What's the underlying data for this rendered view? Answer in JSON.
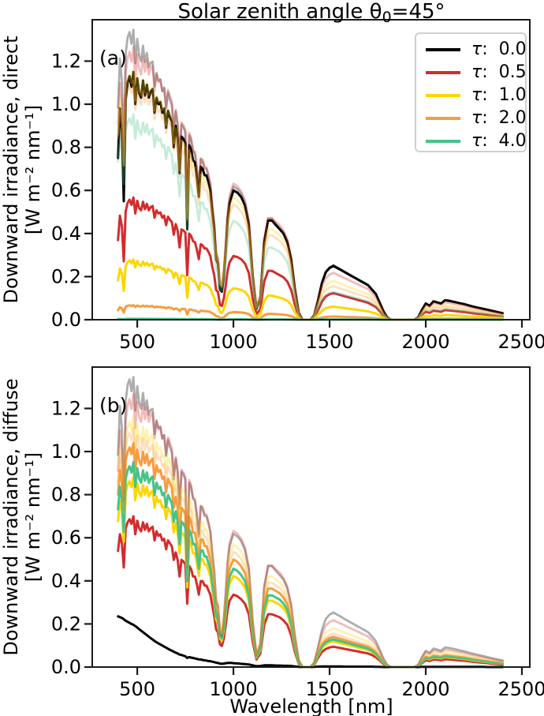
{
  "header": {
    "title_main": "Solar zenith angle θ",
    "title_sub": "0",
    "title_rest": "=45°"
  },
  "panels": {
    "a": {
      "letter": "(a)",
      "ylabel_line1": "Downward irradiance, direct",
      "ylabel_line2": "[W m⁻² nm⁻¹]"
    },
    "b": {
      "letter": "(b)",
      "ylabel_line1": "Downward irradiance, diffuse",
      "ylabel_line2": "[W m⁻² nm⁻¹]"
    }
  },
  "xlabel": "Wavelength [nm]",
  "chart_data": {
    "type": "line",
    "title": "Solar zenith angle θ0=45°",
    "xlabel": "Wavelength [nm]",
    "panels": [
      {
        "id": "a",
        "label": "(a)",
        "ylabel": "Downward irradiance, direct [W m-2 nm-1]",
        "component": "direct"
      },
      {
        "id": "b",
        "label": "(b)",
        "ylabel": "Downward irradiance, diffuse [W m-2 nm-1]",
        "component": "diffuse"
      }
    ],
    "axes": {
      "xlim": [
        266,
        2541
      ],
      "ylim": [
        0,
        1.392
      ],
      "grid": false,
      "legend_position": "upper right"
    },
    "xticks": {
      "values": [
        500,
        1000,
        1500,
        2000,
        2500
      ],
      "labels": [
        "500",
        "1000",
        "1500",
        "2000",
        "2500"
      ]
    },
    "yticks": {
      "values": [
        0.0,
        0.2,
        0.4,
        0.6,
        0.8,
        1.0,
        1.2
      ],
      "labels": [
        "0.0",
        "0.2",
        "0.4",
        "0.6",
        "0.8",
        "1.0",
        "1.2"
      ]
    },
    "series": [
      {
        "label": "τ:  0.0",
        "tau": 0.0,
        "color": "#000000",
        "beam_transmission": 1.0,
        "diffuse_peak": null
      },
      {
        "label": "τ:  0.5",
        "tau": 0.5,
        "color": "#d22c2c",
        "beam_transmission": 0.493,
        "diffuse_peak": 0.7
      },
      {
        "label": "τ:  1.0",
        "tau": 1.0,
        "color": "#ffd500",
        "beam_transmission": 0.243,
        "diffuse_peak": 0.88
      },
      {
        "label": "τ:  2.0",
        "tau": 2.0,
        "color": "#f89c3f",
        "beam_transmission": 0.059,
        "diffuse_peak": 1.04
      },
      {
        "label": "τ:  4.0",
        "tau": 4.0,
        "color": "#46c38a",
        "beam_transmission": 0.0035,
        "diffuse_peak": 0.95
      }
    ],
    "faint_total_curves": {
      "note": "faint curves in both panels = global (direct+diffuse) per tau",
      "alpha": 0.32
    },
    "wavelengths_nm": [
      400,
      410,
      420,
      430,
      440,
      450,
      460,
      470,
      480,
      490,
      500,
      510,
      520,
      530,
      540,
      550,
      560,
      570,
      580,
      590,
      600,
      610,
      620,
      630,
      640,
      650,
      660,
      670,
      680,
      690,
      700,
      710,
      720,
      730,
      740,
      750,
      760,
      770,
      780,
      790,
      800,
      810,
      820,
      830,
      840,
      850,
      860,
      870,
      880,
      890,
      900,
      910,
      920,
      930,
      940,
      950,
      960,
      970,
      980,
      990,
      1000,
      1020,
      1040,
      1060,
      1080,
      1100,
      1120,
      1140,
      1160,
      1180,
      1200,
      1220,
      1240,
      1260,
      1280,
      1300,
      1320,
      1340,
      1360,
      1380,
      1400,
      1420,
      1440,
      1460,
      1480,
      1500,
      1520,
      1540,
      1560,
      1580,
      1600,
      1620,
      1640,
      1660,
      1680,
      1700,
      1720,
      1740,
      1760,
      1780,
      1800,
      1820,
      1840,
      1860,
      1880,
      1900,
      1920,
      1940,
      1960,
      1980,
      2000,
      2020,
      2040,
      2060,
      2080,
      2100,
      2120,
      2140,
      2160,
      2180,
      2200,
      2220,
      2240,
      2260,
      2280,
      2300,
      2320,
      2340,
      2360,
      2380,
      2400
    ],
    "direct_base_tau0": [
      0.75,
      0.98,
      0.88,
      0.55,
      1.02,
      1.1,
      1.13,
      1.08,
      1.15,
      1.0,
      1.12,
      1.05,
      1.03,
      1.11,
      1.04,
      1.09,
      1.03,
      1.06,
      1.07,
      0.96,
      1.03,
      1.0,
      1.01,
      0.96,
      0.98,
      0.89,
      0.97,
      0.94,
      0.92,
      0.8,
      0.9,
      0.84,
      0.68,
      0.85,
      0.84,
      0.82,
      0.42,
      0.81,
      0.79,
      0.74,
      0.73,
      0.66,
      0.57,
      0.71,
      0.7,
      0.67,
      0.67,
      0.64,
      0.6,
      0.5,
      0.42,
      0.28,
      0.26,
      0.14,
      0.13,
      0.2,
      0.32,
      0.46,
      0.54,
      0.57,
      0.6,
      0.59,
      0.57,
      0.53,
      0.44,
      0.2,
      0.05,
      0.1,
      0.36,
      0.46,
      0.46,
      0.44,
      0.42,
      0.4,
      0.36,
      0.28,
      0.14,
      0.03,
      0.0,
      0.0,
      0.0,
      0.02,
      0.09,
      0.17,
      0.22,
      0.24,
      0.25,
      0.24,
      0.23,
      0.22,
      0.21,
      0.2,
      0.19,
      0.18,
      0.17,
      0.16,
      0.14,
      0.12,
      0.08,
      0.04,
      0.01,
      0.0,
      0.0,
      0.0,
      0.0,
      0.0,
      0.0,
      0.0,
      0.01,
      0.045,
      0.075,
      0.065,
      0.085,
      0.08,
      0.075,
      0.09,
      0.088,
      0.084,
      0.08,
      0.076,
      0.072,
      0.067,
      0.062,
      0.058,
      0.054,
      0.05,
      0.046,
      0.042,
      0.038,
      0.034,
      0.03
    ],
    "diffuse_shape": [
      0.77,
      0.88,
      0.82,
      0.66,
      0.92,
      0.96,
      0.98,
      0.95,
      1.0,
      0.88,
      0.97,
      0.92,
      0.9,
      0.96,
      0.91,
      0.95,
      0.9,
      0.92,
      0.93,
      0.84,
      0.9,
      0.87,
      0.88,
      0.84,
      0.85,
      0.78,
      0.84,
      0.82,
      0.8,
      0.71,
      0.76,
      0.71,
      0.6,
      0.71,
      0.7,
      0.68,
      0.42,
      0.67,
      0.65,
      0.6,
      0.6,
      0.55,
      0.48,
      0.57,
      0.57,
      0.54,
      0.54,
      0.51,
      0.48,
      0.41,
      0.34,
      0.25,
      0.23,
      0.15,
      0.14,
      0.19,
      0.28,
      0.38,
      0.44,
      0.46,
      0.48,
      0.47,
      0.45,
      0.42,
      0.35,
      0.17,
      0.05,
      0.09,
      0.28,
      0.35,
      0.35,
      0.34,
      0.33,
      0.31,
      0.28,
      0.21,
      0.1,
      0.02,
      0.0,
      0.0,
      0.0,
      0.015,
      0.06,
      0.1,
      0.12,
      0.13,
      0.135,
      0.13,
      0.125,
      0.12,
      0.115,
      0.11,
      0.105,
      0.1,
      0.095,
      0.09,
      0.08,
      0.065,
      0.045,
      0.02,
      0.005,
      0.0,
      0.0,
      0.0,
      0.0,
      0.0,
      0.0,
      0.0,
      0.005,
      0.025,
      0.045,
      0.04,
      0.05,
      0.048,
      0.045,
      0.052,
      0.05,
      0.048,
      0.046,
      0.044,
      0.042,
      0.039,
      0.036,
      0.033,
      0.031,
      0.028,
      0.026,
      0.023,
      0.021,
      0.019,
      0.017
    ],
    "diffuse_tau0": [
      0.235,
      0.232,
      0.228,
      0.222,
      0.215,
      0.21,
      0.205,
      0.2,
      0.196,
      0.19,
      0.183,
      0.176,
      0.169,
      0.162,
      0.155,
      0.148,
      0.141,
      0.134,
      0.128,
      0.121,
      0.115,
      0.11,
      0.105,
      0.1,
      0.095,
      0.09,
      0.085,
      0.08,
      0.076,
      0.071,
      0.067,
      0.063,
      0.058,
      0.056,
      0.053,
      0.05,
      0.042,
      0.046,
      0.044,
      0.042,
      0.04,
      0.038,
      0.035,
      0.035,
      0.033,
      0.031,
      0.03,
      0.028,
      0.027,
      0.025,
      0.023,
      0.02,
      0.019,
      0.016,
      0.015,
      0.016,
      0.018,
      0.019,
      0.019,
      0.019,
      0.018,
      0.017,
      0.015,
      0.014,
      0.012,
      0.008,
      0.004,
      0.005,
      0.008,
      0.008,
      0.008,
      0.007,
      0.007,
      0.006,
      0.006,
      0.005,
      0.003,
      0.001,
      0.0,
      0.0,
      0.0,
      0.001,
      0.002,
      0.003,
      0.003,
      0.003,
      0.003,
      0.003,
      0.003,
      0.002,
      0.002,
      0.002,
      0.002,
      0.002,
      0.002,
      0.002,
      0.002,
      0.001,
      0.001,
      0.0,
      0.0,
      0.0,
      0.0,
      0.0,
      0.0,
      0.0,
      0.0,
      0.0,
      0.0,
      0.001,
      0.001,
      0.001,
      0.001,
      0.001,
      0.001,
      0.001,
      0.001,
      0.001,
      0.001,
      0.001,
      0.001,
      0.001,
      0.001,
      0.001,
      0.001,
      0.001,
      0.0,
      0.0,
      0.0,
      0.0,
      0.0
    ]
  },
  "legend": {
    "items": [
      {
        "label": "τ:  0.0"
      },
      {
        "label": "τ:  0.5"
      },
      {
        "label": "τ:  1.0"
      },
      {
        "label": "τ:  2.0"
      },
      {
        "label": "τ:  4.0"
      }
    ]
  }
}
